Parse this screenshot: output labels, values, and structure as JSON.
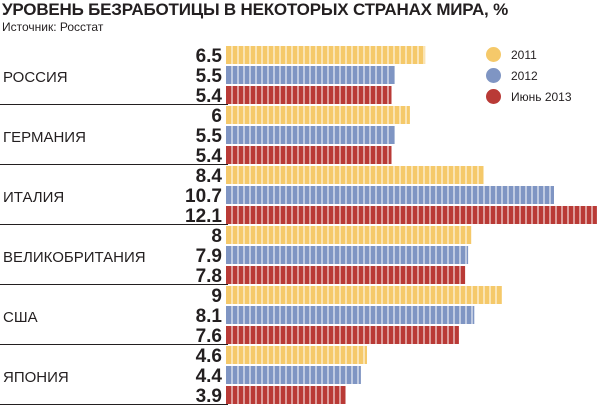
{
  "chart_data": {
    "type": "bar",
    "orientation": "horizontal",
    "title": "УРОВЕНЬ БЕЗРАБОТИЦЫ В НЕКОТОРЫХ СТРАНАХ МИРА, %",
    "subtitle": "Источник: Росстат",
    "categories": [
      "РОССИЯ",
      "ГЕРМАНИЯ",
      "ИТАЛИЯ",
      "ВЕЛИКОБРИТАНИЯ",
      "США",
      "ЯПОНИЯ"
    ],
    "series": [
      {
        "name": "2011",
        "color": "#f5c96a",
        "values": [
          6.5,
          6,
          8.4,
          8,
          9,
          4.6
        ],
        "labels": [
          "6.5",
          "6",
          "8.4",
          "8",
          "9",
          "4.6"
        ]
      },
      {
        "name": "2012",
        "color": "#7f95c3",
        "values": [
          5.5,
          5.5,
          10.7,
          7.9,
          8.1,
          4.4
        ],
        "labels": [
          "5.5",
          "5.5",
          "10.7",
          "7.9",
          "8.1",
          "4.4"
        ]
      },
      {
        "name": "Июнь 2013",
        "color": "#b93a36",
        "values": [
          5.4,
          5.4,
          12.1,
          7.8,
          7.6,
          3.9
        ],
        "labels": [
          "5.4",
          "5.4",
          "12.1",
          "7.8",
          "7.6",
          "3.9"
        ]
      }
    ],
    "legend_position": "top-right",
    "grid": false
  }
}
